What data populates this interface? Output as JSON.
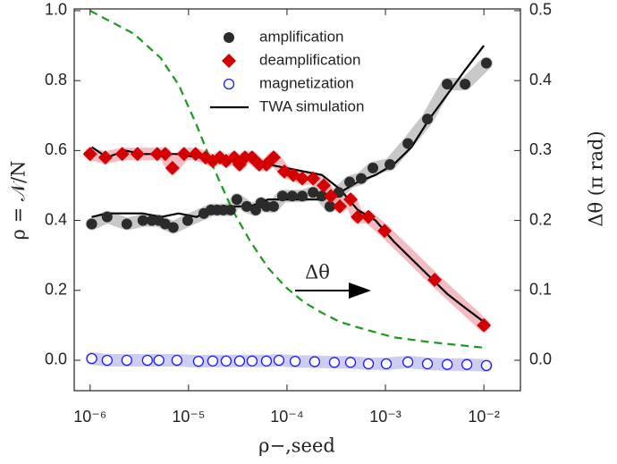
{
  "chart_data": {
    "type": "scatter",
    "xlog": true,
    "xlabel": "ρ−,seed",
    "ylabel": "ρ = 𝒩/N",
    "y2label": "Δθ (π rad)",
    "annotation": "Δθ",
    "xlim": [
      6.9e-07,
      0.0235
    ],
    "ylim": [
      -0.087,
      1.005
    ],
    "y2lim": [
      -0.0435,
      0.5025
    ],
    "xticks": [
      {
        "value": 1e-06,
        "label": "10⁻⁶"
      },
      {
        "value": 1e-05,
        "label": "10⁻⁵"
      },
      {
        "value": 0.0001,
        "label": "10⁻⁴"
      },
      {
        "value": 0.001,
        "label": "10⁻³"
      },
      {
        "value": 0.01,
        "label": "10⁻²"
      }
    ],
    "yticks": [
      {
        "value": 0,
        "label": "0.0"
      },
      {
        "value": 0.2,
        "label": "0.2"
      },
      {
        "value": 0.4,
        "label": "0.4"
      },
      {
        "value": 0.6,
        "label": "0.6"
      },
      {
        "value": 0.8,
        "label": "0.8"
      },
      {
        "value": 1,
        "label": "1.0"
      }
    ],
    "y2ticks": [
      {
        "value": 0,
        "label": "0.0"
      },
      {
        "value": 0.1,
        "label": "0.1"
      },
      {
        "value": 0.2,
        "label": "0.2"
      },
      {
        "value": 0.3,
        "label": "0.3"
      },
      {
        "value": 0.4,
        "label": "0.4"
      },
      {
        "value": 0.5,
        "label": "0.5"
      }
    ],
    "series": [
      {
        "name": "amplification",
        "color": "#2b2b2b",
        "band_color": "#b0b0b0",
        "marker": "circle",
        "x": [
          1.04e-06,
          1.49e-06,
          2.36e-06,
          3.44e-06,
          4.24e-06,
          5e-06,
          5.8e-06,
          7e-06,
          9.8e-06,
          1.43e-05,
          1.69e-05,
          1.95e-05,
          2.26e-05,
          2.67e-05,
          3.1e-05,
          3.9e-05,
          4.81e-05,
          5.45e-05,
          6.18e-05,
          7.31e-05,
          9e-05,
          0.000113,
          0.000143,
          0.000184,
          0.000226,
          0.000273,
          0.000336,
          0.000433,
          0.000568,
          0.000746,
          0.00111,
          0.00169,
          0.00267,
          0.00424,
          0.00644,
          0.0106
        ],
        "values": [
          0.39,
          0.41,
          0.39,
          0.4,
          0.4,
          0.4,
          0.39,
          0.38,
          0.4,
          0.42,
          0.43,
          0.43,
          0.43,
          0.43,
          0.46,
          0.44,
          0.43,
          0.45,
          0.44,
          0.44,
          0.47,
          0.47,
          0.47,
          0.48,
          0.47,
          0.44,
          0.48,
          0.51,
          0.52,
          0.55,
          0.56,
          0.62,
          0.69,
          0.79,
          0.79,
          0.85
        ]
      },
      {
        "name": "deamplification",
        "color": "#d40000",
        "band_color": "#f0a0a8",
        "marker": "diamond",
        "x": [
          1e-06,
          1.43e-06,
          2.12e-06,
          3.03e-06,
          4.81e-06,
          5.8e-06,
          6.86e-06,
          9e-06,
          1.18e-05,
          1.49e-05,
          1.76e-05,
          2.08e-05,
          2.41e-05,
          2.91e-05,
          3.3e-05,
          3.74e-05,
          4.42e-05,
          5.23e-05,
          6.18e-05,
          7.31e-05,
          9.4e-05,
          0.000116,
          0.000143,
          0.000184,
          0.000236,
          0.000279,
          0.000344,
          0.000442,
          0.000523,
          0.000672,
          0.00098,
          0.00316,
          0.01
        ],
        "values": [
          0.59,
          0.58,
          0.59,
          0.59,
          0.59,
          0.59,
          0.55,
          0.59,
          0.59,
          0.58,
          0.57,
          0.58,
          0.57,
          0.58,
          0.56,
          0.58,
          0.58,
          0.56,
          0.56,
          0.58,
          0.54,
          0.53,
          0.52,
          0.52,
          0.5,
          0.47,
          0.44,
          0.46,
          0.41,
          0.41,
          0.37,
          0.23,
          0.1
        ]
      },
      {
        "name": "magnetization",
        "color": "#1a1aff",
        "band_color": "#b8b8f0",
        "marker": "open-circle",
        "x": [
          1.04e-06,
          1.49e-06,
          2.36e-06,
          3.82e-06,
          5e-06,
          7.62e-06,
          1.26e-05,
          1.76e-05,
          2.41e-05,
          3.3e-05,
          4.42e-05,
          6.18e-05,
          8.28e-05,
          0.000121,
          0.000191,
          0.000303,
          0.000442,
          0.000672,
          0.00102,
          0.00169,
          0.00267,
          0.00424,
          0.00672,
          0.0106
        ],
        "values": [
          0.005,
          0.0,
          0.0,
          0.0,
          0.0,
          0.0,
          -0.003,
          -0.002,
          -0.002,
          -0.002,
          -0.002,
          -0.002,
          0.0,
          -0.003,
          -0.004,
          -0.006,
          -0.006,
          -0.01,
          -0.01,
          -0.005,
          -0.01,
          -0.012,
          -0.012,
          -0.015
        ]
      },
      {
        "name": "TWA simulation",
        "color": "#000000",
        "marker": "line",
        "x": [
          1.04e-06,
          1.49e-06,
          2.26e-06,
          3.44e-06,
          5.23e-06,
          7.94e-06,
          1.21e-05,
          1.84e-05,
          2.79e-05,
          4.24e-05,
          6.44e-05,
          9.8e-05,
          0.000149,
          0.000226,
          0.000344,
          0.000523,
          0.000794,
          0.00121,
          0.00184,
          0.00279,
          0.00424,
          0.00644,
          0.01,
          null,
          1.04e-06,
          1.49e-06,
          2.26e-06,
          3.44e-06,
          5.23e-06,
          7.94e-06,
          1.21e-05,
          1.84e-05,
          2.79e-05,
          4.24e-05,
          6.44e-05,
          9.8e-05,
          0.000149,
          0.000226,
          0.000344,
          0.000523,
          0.000794,
          0.00121,
          0.00184,
          0.00279,
          0.00424,
          0.00644,
          0.01
        ],
        "values": [
          0.41,
          0.42,
          0.42,
          0.42,
          0.41,
          0.42,
          0.41,
          0.44,
          0.44,
          0.44,
          0.46,
          0.46,
          0.46,
          0.46,
          0.48,
          0.51,
          0.53,
          0.56,
          0.61,
          0.69,
          0.76,
          0.83,
          0.9,
          null,
          0.61,
          0.58,
          0.6,
          0.59,
          0.59,
          0.59,
          0.58,
          0.58,
          0.58,
          0.58,
          0.56,
          0.55,
          0.54,
          0.53,
          0.49,
          0.43,
          0.4,
          0.34,
          0.29,
          0.24,
          0.19,
          0.15,
          0.11
        ]
      },
      {
        "color": "#1a9a1a",
        "marker": "dashed",
        "axis": "y2",
        "x": [
          1e-06,
          2.79e-06,
          5.23e-06,
          7.94e-06,
          1.21e-05,
          1.84e-05,
          2.79e-05,
          4.24e-05,
          6.44e-05,
          9.8e-05,
          0.000149,
          0.000226,
          0.000344,
          0.000523,
          0.00121,
          0.00279,
          0.01
        ],
        "values": [
          0.5,
          0.467,
          0.432,
          0.394,
          0.336,
          0.272,
          0.215,
          0.17,
          0.132,
          0.104,
          0.083,
          0.068,
          0.055,
          0.047,
          0.033,
          0.026,
          0.018
        ]
      }
    ]
  }
}
